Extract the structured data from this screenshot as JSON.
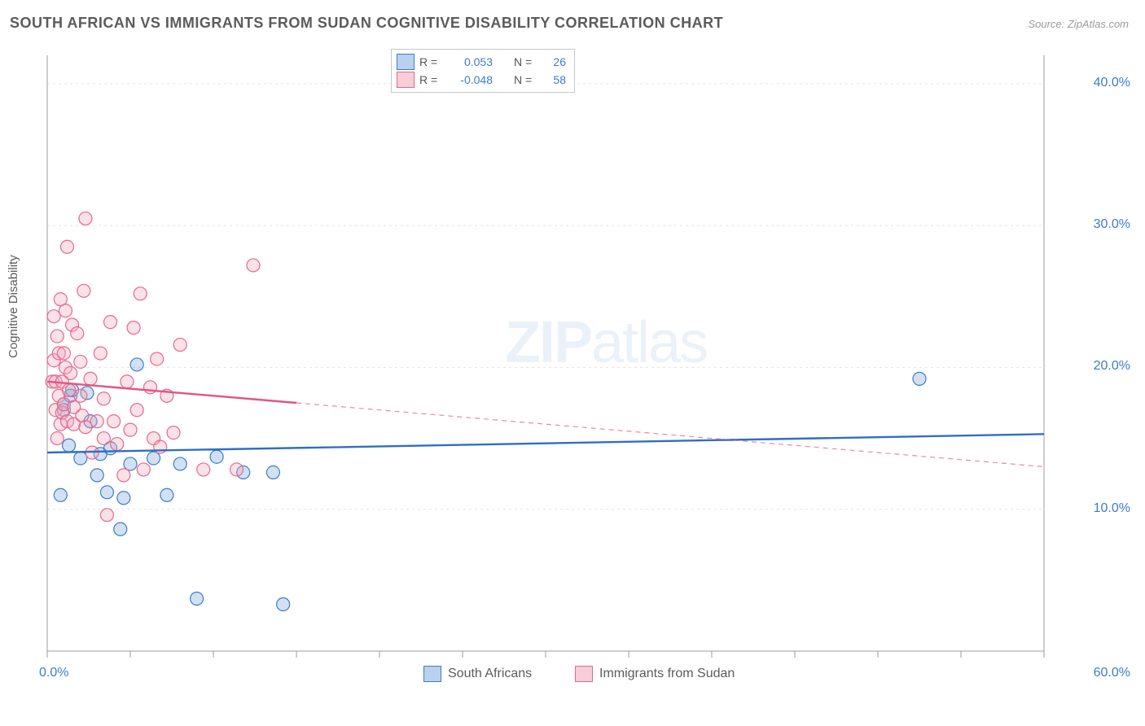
{
  "title": "SOUTH AFRICAN VS IMMIGRANTS FROM SUDAN COGNITIVE DISABILITY CORRELATION CHART",
  "source_label": "Source: ZipAtlas.com",
  "ylabel": "Cognitive Disability",
  "watermark_bold": "ZIP",
  "watermark_thin": "atlas",
  "chart": {
    "type": "scatter-with-regression",
    "background_color": "#ffffff",
    "grid_color": "#e2e2e2",
    "axis_color": "#9e9e9e",
    "tick_color": "#9e9e9e",
    "ytick_label_color": "#3d7cc9",
    "xtick_label_color": "#3d7cc9",
    "xlim": [
      0,
      60
    ],
    "ylim": [
      0,
      42
    ],
    "xticks_major": [
      0,
      5,
      10,
      15,
      20,
      25,
      30,
      35,
      40,
      45,
      50,
      55,
      60
    ],
    "xtick_labels": {
      "0": "0.0%",
      "60": "60.0%"
    },
    "yticks": [
      10,
      20,
      30,
      40
    ],
    "ytick_labels": {
      "10": "10.0%",
      "20": "20.0%",
      "30": "30.0%",
      "40": "40.0%"
    },
    "marker_radius": 8,
    "marker_stroke_width": 1.2,
    "marker_fill_opacity": 0.35,
    "line_width": 2.4,
    "dash_pattern": "6,5"
  },
  "series": [
    {
      "key": "south_africans",
      "label": "South Africans",
      "marker_fill": "#7ba8dd",
      "marker_stroke": "#3d7cc9",
      "trend_color": "#2f6fc1",
      "trend_x0": 0,
      "trend_y0": 14.0,
      "trend_x1": 60,
      "trend_y1": 15.3,
      "solid_until_x": 60,
      "R": "0.053",
      "N": "26",
      "points": [
        [
          0.8,
          11.0
        ],
        [
          1.0,
          17.0
        ],
        [
          1.0,
          17.4
        ],
        [
          1.3,
          14.5
        ],
        [
          1.4,
          18.0
        ],
        [
          1.5,
          18.4
        ],
        [
          2.0,
          13.6
        ],
        [
          2.4,
          18.2
        ],
        [
          2.6,
          16.2
        ],
        [
          3.0,
          12.4
        ],
        [
          3.2,
          13.9
        ],
        [
          3.6,
          11.2
        ],
        [
          3.8,
          14.3
        ],
        [
          4.4,
          8.6
        ],
        [
          4.6,
          10.8
        ],
        [
          5.0,
          13.2
        ],
        [
          5.4,
          20.2
        ],
        [
          6.4,
          13.6
        ],
        [
          7.2,
          11.0
        ],
        [
          8.0,
          13.2
        ],
        [
          9.0,
          3.7
        ],
        [
          10.2,
          13.7
        ],
        [
          11.8,
          12.6
        ],
        [
          13.6,
          12.6
        ],
        [
          14.2,
          3.3
        ],
        [
          52.5,
          19.2
        ]
      ]
    },
    {
      "key": "immigrants_sudan",
      "label": "Immigrants from Sudan",
      "marker_fill": "#f4a9bd",
      "marker_stroke": "#e46a8b",
      "trend_color": "#e25483",
      "trend_x0": 0,
      "trend_y0": 19.0,
      "trend_x1": 60,
      "trend_y1": 13.0,
      "solid_until_x": 15,
      "R": "-0.048",
      "N": "58",
      "points": [
        [
          0.3,
          19.0
        ],
        [
          0.4,
          20.5
        ],
        [
          0.4,
          23.6
        ],
        [
          0.5,
          17.0
        ],
        [
          0.5,
          19.0
        ],
        [
          0.6,
          15.0
        ],
        [
          0.6,
          22.2
        ],
        [
          0.7,
          18.0
        ],
        [
          0.7,
          21.0
        ],
        [
          0.8,
          16.0
        ],
        [
          0.8,
          24.8
        ],
        [
          0.9,
          16.8
        ],
        [
          0.9,
          19.0
        ],
        [
          1.0,
          17.4
        ],
        [
          1.0,
          21.0
        ],
        [
          1.1,
          20.0
        ],
        [
          1.1,
          24.0
        ],
        [
          1.2,
          16.2
        ],
        [
          1.2,
          28.5
        ],
        [
          1.3,
          18.4
        ],
        [
          1.4,
          19.6
        ],
        [
          1.5,
          23.0
        ],
        [
          1.6,
          17.2
        ],
        [
          1.6,
          16.0
        ],
        [
          1.8,
          22.4
        ],
        [
          2.0,
          18.0
        ],
        [
          2.0,
          20.4
        ],
        [
          2.1,
          16.6
        ],
        [
          2.2,
          25.4
        ],
        [
          2.3,
          15.8
        ],
        [
          2.3,
          30.5
        ],
        [
          2.6,
          19.2
        ],
        [
          2.7,
          14.0
        ],
        [
          3.0,
          16.2
        ],
        [
          3.2,
          21.0
        ],
        [
          3.4,
          17.8
        ],
        [
          3.4,
          15.0
        ],
        [
          3.6,
          9.6
        ],
        [
          3.8,
          23.2
        ],
        [
          4.0,
          16.2
        ],
        [
          4.2,
          14.6
        ],
        [
          4.6,
          12.4
        ],
        [
          4.8,
          19.0
        ],
        [
          5.0,
          15.6
        ],
        [
          5.2,
          22.8
        ],
        [
          5.4,
          17.0
        ],
        [
          5.6,
          25.2
        ],
        [
          5.8,
          12.8
        ],
        [
          6.2,
          18.6
        ],
        [
          6.4,
          15.0
        ],
        [
          6.6,
          20.6
        ],
        [
          6.8,
          14.4
        ],
        [
          7.2,
          18.0
        ],
        [
          7.6,
          15.4
        ],
        [
          8.0,
          21.6
        ],
        [
          9.4,
          12.8
        ],
        [
          11.4,
          12.8
        ],
        [
          12.4,
          27.2
        ]
      ]
    }
  ],
  "top_legend": {
    "rows": [
      {
        "swatch_fill": "#b9d1ee",
        "swatch_stroke": "#3d7cc9",
        "R": "0.053",
        "N": "26"
      },
      {
        "swatch_fill": "#f7cdd9",
        "swatch_stroke": "#e46a8b",
        "R": "-0.048",
        "N": "58"
      }
    ],
    "labels": {
      "R": "R =",
      "N": "N ="
    }
  },
  "bottom_legend": {
    "items": [
      {
        "swatch_fill": "#b9d1ee",
        "swatch_stroke": "#3d7cc9",
        "label": "South Africans"
      },
      {
        "swatch_fill": "#f7cdd9",
        "swatch_stroke": "#e46a8b",
        "label": "Immigrants from Sudan"
      }
    ]
  }
}
